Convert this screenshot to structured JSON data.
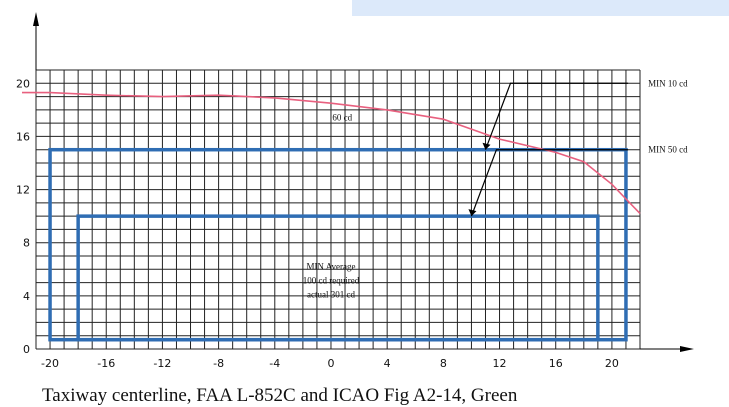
{
  "chart_data": {
    "type": "line",
    "caption": "Taxiway centerline, FAA L-852C and ICAO Fig A2-14, Green",
    "xlim": [
      -21,
      22
    ],
    "ylim": [
      0,
      21
    ],
    "x_ticks": [
      -20,
      -16,
      -12,
      -8,
      -4,
      0,
      4,
      8,
      12,
      16,
      20
    ],
    "y_ticks": [
      0,
      4,
      8,
      12,
      16,
      20
    ],
    "grid": true,
    "series": [
      {
        "color": "#e8607f",
        "x": [
          -22,
          -20,
          -16,
          -12,
          -8,
          -4,
          0,
          4,
          8,
          12,
          16,
          18,
          20,
          22
        ],
        "y": [
          19.3,
          19.3,
          19.1,
          19.0,
          19.1,
          18.9,
          18.5,
          18.0,
          17.3,
          15.8,
          14.8,
          14.1,
          12.4,
          10.2
        ]
      }
    ],
    "regions": [
      {
        "x": [
          -20,
          21
        ],
        "y": [
          0.7,
          15
        ],
        "color": "#2f6db3"
      },
      {
        "x": [
          -18,
          19
        ],
        "y": [
          0.7,
          10
        ],
        "color": "#2f6db3"
      }
    ],
    "annotations": [
      {
        "text": "MIN 10 cd",
        "target": [
          11,
          15
        ],
        "label_at": [
          24,
          20
        ]
      },
      {
        "text": "MIN 50 cd",
        "target": [
          10,
          10
        ],
        "label_at": [
          24,
          15
        ]
      },
      {
        "text": "MIN Average\n100 cd required\nactual 301 cd",
        "at": [
          0,
          6
        ]
      },
      {
        "text": "60 cd",
        "at": [
          0.8,
          17.2
        ]
      }
    ]
  },
  "header_bar_color": "#dce9fa"
}
